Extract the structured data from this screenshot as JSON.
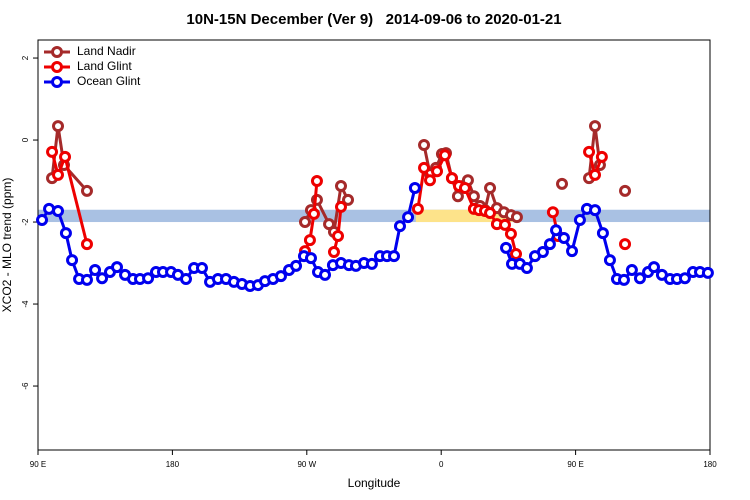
{
  "chart_data": {
    "type": "line",
    "title": "10N-15N December (Ver 9)   2014-09-06 to 2020-01-21",
    "xlabel": "Longitude",
    "ylabel": "XCO2 - MLO trend (ppm)",
    "xlim": [
      90,
      540
    ],
    "xticks": [
      {
        "value": 90,
        "label": "90 E"
      },
      {
        "value": 180,
        "label": "180"
      },
      {
        "value": 270,
        "label": "90 W"
      },
      {
        "value": 360,
        "label": "0"
      },
      {
        "value": 450,
        "label": "90 E"
      },
      {
        "value": 540,
        "label": "180"
      }
    ],
    "ylim": [
      -7.56,
      2.44
    ],
    "yticks": [
      2,
      0,
      -2,
      -4,
      -6
    ],
    "legend": "top-left",
    "band": {
      "lower": -2.0,
      "upper": -1.7,
      "color": "#a9c1e3",
      "highlight_x": [
        343,
        408
      ],
      "highlight_color": "#fde38a"
    },
    "series": [
      {
        "name": "Land Nadir",
        "color": "#a52a2a",
        "x": [
          99.4,
          103.4,
          107.4,
          122.8,
          null,
          268.8,
          272.8,
          276.8,
          284.9,
          288.2,
          292.9,
          297.6,
          null,
          348.5,
          352.5,
          356.5,
          360.5,
          363.2,
          367.2,
          371.2,
          374.6,
          377.9,
          381.9,
          386.0,
          389.3,
          392.7,
          397.3,
          402.0,
          406.7,
          410.7,
          null,
          440.9,
          null,
          459.0,
          463.0,
          466.3,
          null,
          483.1
        ],
        "values": [
          -0.93,
          0.34,
          -0.61,
          -1.24,
          null,
          -2.0,
          -1.71,
          -1.46,
          -2.05,
          -2.24,
          -1.12,
          -1.46,
          null,
          -0.12,
          -0.83,
          -0.68,
          -0.34,
          -0.32,
          -0.93,
          -1.37,
          -1.12,
          -0.98,
          -1.37,
          -1.61,
          -1.71,
          -1.17,
          -1.66,
          -1.76,
          -1.83,
          -1.88,
          null,
          -1.07,
          null,
          -0.93,
          0.34,
          -0.61,
          null,
          -1.24
        ]
      },
      {
        "name": "Land Glint",
        "color": "#ee0000",
        "x": [
          99.4,
          103.4,
          108.1,
          122.8,
          null,
          268.8,
          272.1,
          274.8,
          276.8,
          null,
          288.2,
          290.9,
          292.9,
          null,
          344.4,
          348.5,
          352.5,
          357.2,
          362.5,
          367.2,
          371.9,
          375.9,
          381.9,
          385.3,
          389.3,
          392.7,
          397.3,
          402.7,
          406.7,
          410.1,
          null,
          434.8,
          438.2,
          null,
          459.0,
          463.0,
          467.6,
          null,
          483.1
        ],
        "values": [
          -0.29,
          -0.85,
          -0.41,
          -2.54,
          null,
          -2.71,
          -2.44,
          -1.8,
          -1.0,
          null,
          -2.73,
          -2.34,
          -1.63,
          null,
          -1.68,
          -0.68,
          -0.98,
          -0.76,
          -0.37,
          -0.93,
          -1.12,
          -1.17,
          -1.68,
          -1.71,
          -1.73,
          -1.78,
          -2.05,
          -2.07,
          -2.29,
          -2.78,
          null,
          -1.76,
          -2.34,
          null,
          -0.29,
          -0.85,
          -0.41,
          null,
          -2.54
        ]
      },
      {
        "name": "Ocean Glint",
        "color": "#0000ee",
        "x": [
          92.7,
          97.4,
          103.4,
          108.7,
          112.8,
          117.5,
          122.8,
          128.2,
          132.9,
          138.2,
          142.9,
          148.3,
          153.6,
          158.3,
          163.7,
          169.0,
          173.7,
          179.1,
          183.7,
          189.1,
          194.5,
          199.8,
          205.2,
          210.5,
          215.9,
          221.2,
          226.6,
          232.0,
          237.3,
          242.0,
          247.4,
          252.7,
          258.1,
          262.8,
          268.1,
          272.8,
          277.5,
          282.2,
          287.5,
          292.9,
          298.2,
          302.9,
          308.3,
          313.6,
          319.0,
          323.7,
          328.4,
          332.4,
          337.8,
          342.4,
          null,
          403.4,
          407.4,
          412.7,
          417.4,
          422.8,
          428.1,
          432.8,
          436.9,
          442.2,
          447.6,
          452.9,
          457.6,
          463.0,
          468.3,
          473.0,
          477.7,
          482.4,
          487.7,
          493.1,
          498.5,
          502.5,
          507.8,
          513.2,
          517.9,
          523.2,
          528.6,
          533.3,
          538.6
        ],
        "values": [
          -1.95,
          -1.68,
          -1.73,
          -2.27,
          -2.93,
          -3.39,
          -3.41,
          -3.17,
          -3.37,
          -3.22,
          -3.1,
          -3.29,
          -3.39,
          -3.39,
          -3.37,
          -3.22,
          -3.22,
          -3.22,
          -3.29,
          -3.39,
          -3.12,
          -3.12,
          -3.46,
          -3.39,
          -3.39,
          -3.46,
          -3.51,
          -3.56,
          -3.54,
          -3.44,
          -3.39,
          -3.32,
          -3.17,
          -3.07,
          -2.83,
          -2.88,
          -3.22,
          -3.29,
          -3.05,
          -3.0,
          -3.05,
          -3.07,
          -3.0,
          -3.02,
          -2.83,
          -2.83,
          -2.83,
          -2.1,
          -1.88,
          -1.17,
          null,
          -2.63,
          -3.02,
          -3.02,
          -3.12,
          -2.83,
          -2.73,
          -2.54,
          -2.2,
          -2.39,
          -2.71,
          -1.95,
          -1.68,
          -1.71,
          -2.27,
          -2.93,
          -3.39,
          -3.41,
          -3.17,
          -3.37,
          -3.22,
          -3.1,
          -3.29,
          -3.39,
          -3.39,
          -3.37,
          -3.22,
          -3.22,
          -3.24
        ]
      }
    ]
  }
}
